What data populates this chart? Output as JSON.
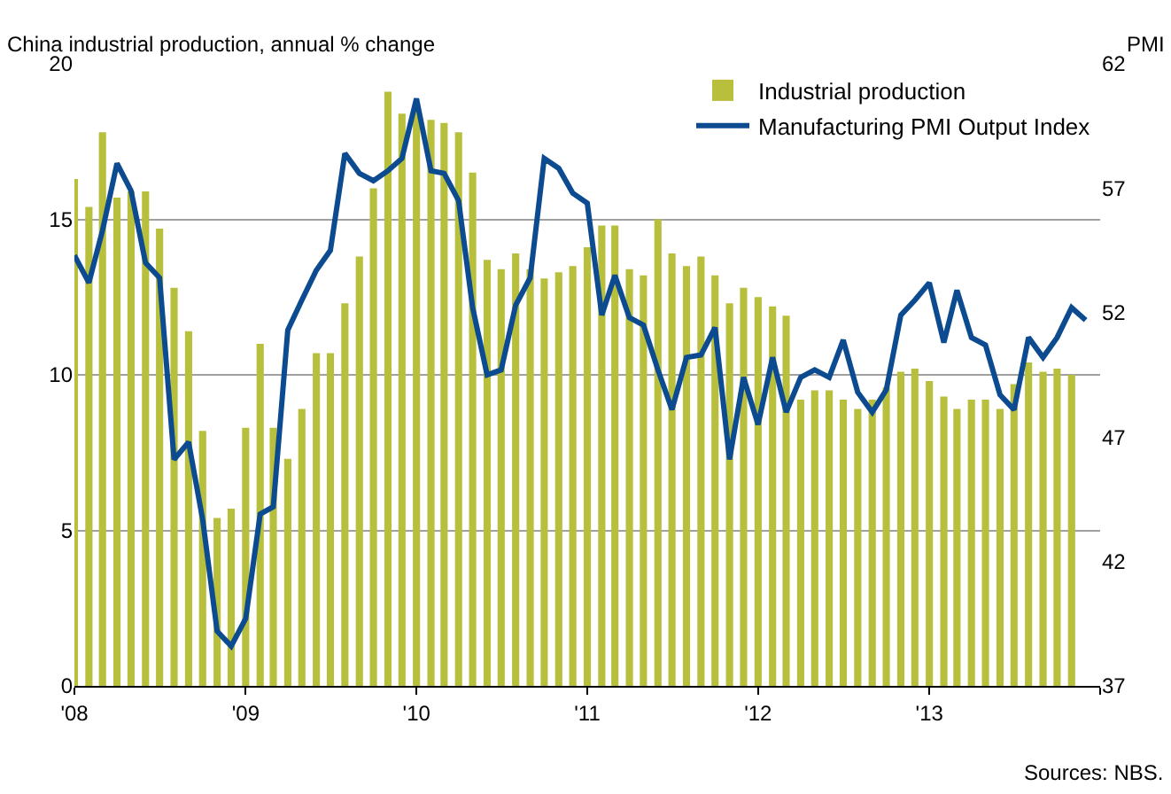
{
  "chart_data": {
    "type": "bar",
    "ylabel": "China industrial production, annual % change",
    "y2label": "PMI",
    "x": [
      "2008-01",
      "2008-02",
      "2008-03",
      "2008-04",
      "2008-05",
      "2008-06",
      "2008-07",
      "2008-08",
      "2008-09",
      "2008-10",
      "2008-11",
      "2008-12",
      "2009-01",
      "2009-02",
      "2009-03",
      "2009-04",
      "2009-05",
      "2009-06",
      "2009-07",
      "2009-08",
      "2009-09",
      "2009-10",
      "2009-11",
      "2009-12",
      "2010-01",
      "2010-02",
      "2010-03",
      "2010-04",
      "2010-05",
      "2010-06",
      "2010-07",
      "2010-08",
      "2010-09",
      "2010-10",
      "2010-11",
      "2010-12",
      "2011-01",
      "2011-02",
      "2011-03",
      "2011-04",
      "2011-05",
      "2011-06",
      "2011-07",
      "2011-08",
      "2011-09",
      "2011-10",
      "2011-11",
      "2011-12",
      "2012-01",
      "2012-02",
      "2012-03",
      "2012-04",
      "2012-05",
      "2012-06",
      "2012-07",
      "2012-08",
      "2012-09",
      "2012-10",
      "2012-11",
      "2012-12",
      "2013-01",
      "2013-02",
      "2013-03",
      "2013-04",
      "2013-05",
      "2013-06",
      "2013-07",
      "2013-08",
      "2013-09",
      "2013-10",
      "2013-11",
      "2013-12"
    ],
    "series": [
      {
        "name": "Industrial production",
        "color": "#b8bf3c",
        "values": [
          16.3,
          15.4,
          17.8,
          15.7,
          15.9,
          15.9,
          14.7,
          12.8,
          11.4,
          8.2,
          5.4,
          5.7,
          8.3,
          11.0,
          8.3,
          7.3,
          8.9,
          10.7,
          10.7,
          12.3,
          13.8,
          16.0,
          19.1,
          18.4,
          18.5,
          18.2,
          18.1,
          17.8,
          16.5,
          13.7,
          13.4,
          13.9,
          13.4,
          13.1,
          13.3,
          13.5,
          14.1,
          14.8,
          14.8,
          13.4,
          13.2,
          15.0,
          13.9,
          13.5,
          13.8,
          13.2,
          12.3,
          12.8,
          12.5,
          12.2,
          11.9,
          9.2,
          9.5,
          9.5,
          9.2,
          8.9,
          9.2,
          9.6,
          10.1,
          10.2,
          9.8,
          9.3,
          8.9,
          9.2,
          9.2,
          8.9,
          9.7,
          10.4,
          10.1,
          10.2,
          10.0,
          null
        ]
      },
      {
        "name": "Manufacturing PMI Output Index",
        "type": "line",
        "axis": "y2",
        "color": "#0d4b91",
        "values": [
          54.3,
          53.2,
          55.3,
          58.0,
          56.9,
          54.0,
          53.4,
          46.1,
          46.8,
          43.7,
          39.2,
          38.6,
          39.7,
          43.9,
          44.2,
          51.3,
          52.5,
          53.7,
          54.5,
          58.4,
          57.6,
          57.3,
          57.7,
          58.2,
          60.6,
          57.7,
          57.6,
          56.5,
          52.2,
          49.5,
          49.7,
          52.3,
          53.4,
          58.2,
          57.8,
          56.8,
          56.4,
          51.9,
          53.5,
          51.8,
          51.5,
          49.7,
          48.1,
          50.2,
          50.3,
          51.4,
          46.1,
          49.4,
          47.5,
          50.2,
          48.0,
          49.4,
          49.7,
          49.4,
          50.9,
          48.8,
          48.0,
          48.9,
          51.9,
          52.5,
          53.2,
          50.8,
          52.9,
          51.0,
          50.7,
          48.7,
          48.1,
          51.0,
          50.2,
          51.0,
          52.2,
          51.7
        ]
      }
    ],
    "xlim": [
      "2008-01",
      "2014-01"
    ],
    "xticks": [
      {
        "value": "2008-01",
        "label": "'08"
      },
      {
        "value": "2009-01",
        "label": "'09"
      },
      {
        "value": "2010-01",
        "label": "'10"
      },
      {
        "value": "2011-01",
        "label": "'11"
      },
      {
        "value": "2012-01",
        "label": "'12"
      },
      {
        "value": "2013-01",
        "label": "'13"
      },
      {
        "value": "2014-01",
        "label": null
      }
    ],
    "ylim": [
      0,
      20
    ],
    "yticks": [
      0,
      5,
      10,
      15,
      20
    ],
    "y2lim": [
      37,
      62
    ],
    "y2ticks": [
      37,
      42,
      47,
      52,
      57,
      62
    ],
    "grid": "y",
    "legend": "top right",
    "marker": "none",
    "line_style": "solid",
    "annotations": [
      "Sources: NBS."
    ]
  }
}
